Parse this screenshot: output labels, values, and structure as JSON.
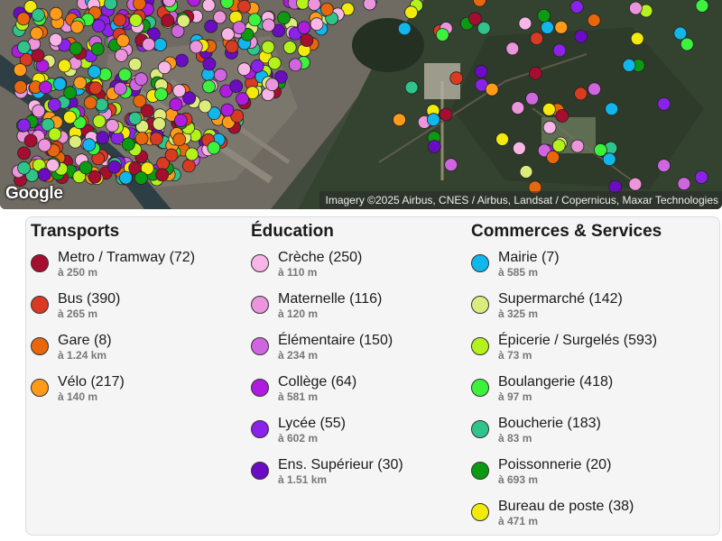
{
  "map": {
    "attribution": "Imagery ©2025 Airbus, CNES / Airbus, Landsat / Copernicus, Maxar Technologies",
    "logo_text": "Google"
  },
  "legend": {
    "columns": [
      {
        "title": "Transports",
        "items": [
          {
            "label": "Metro / Tramway (72)",
            "distance": "à 250 m",
            "color": "#a50e2e"
          },
          {
            "label": "Bus (390)",
            "distance": "à 265 m",
            "color": "#d83a22"
          },
          {
            "label": "Gare (8)",
            "distance": "à 1.24 km",
            "color": "#e8660c"
          },
          {
            "label": "Vélo (217)",
            "distance": "à 140 m",
            "color": "#ff9a1a"
          }
        ]
      },
      {
        "title": "Éducation",
        "items": [
          {
            "label": "Crèche (250)",
            "distance": "à 110 m",
            "color": "#f7b6e6"
          },
          {
            "label": "Maternelle (116)",
            "distance": "à 120 m",
            "color": "#ec94dc"
          },
          {
            "label": "Élémentaire (150)",
            "distance": "à 234 m",
            "color": "#cf66e0"
          },
          {
            "label": "Collège (64)",
            "distance": "à 581 m",
            "color": "#b01be0"
          },
          {
            "label": "Lycée (55)",
            "distance": "à 602 m",
            "color": "#8a22ea"
          },
          {
            "label": "Ens. Supérieur (30)",
            "distance": "à 1.51 km",
            "color": "#6a0cc2"
          }
        ]
      },
      {
        "title": "Commerces & Services",
        "items": [
          {
            "label": "Mairie (7)",
            "distance": "à 585 m",
            "color": "#11b6ea"
          },
          {
            "label": "Supermarché (142)",
            "distance": "à 325 m",
            "color": "#dceb7c"
          },
          {
            "label": "Épicerie / Surgelés (593)",
            "distance": "à 73 m",
            "color": "#b4f21c"
          },
          {
            "label": "Boulangerie (418)",
            "distance": "à 97 m",
            "color": "#3cf23c"
          },
          {
            "label": "Boucherie (183)",
            "distance": "à 83 m",
            "color": "#2ec48a"
          },
          {
            "label": "Poissonnerie (20)",
            "distance": "à 693 m",
            "color": "#0c9a12"
          },
          {
            "label": "Bureau de poste (38)",
            "distance": "à 471 m",
            "color": "#f2ea0c"
          }
        ]
      }
    ]
  }
}
